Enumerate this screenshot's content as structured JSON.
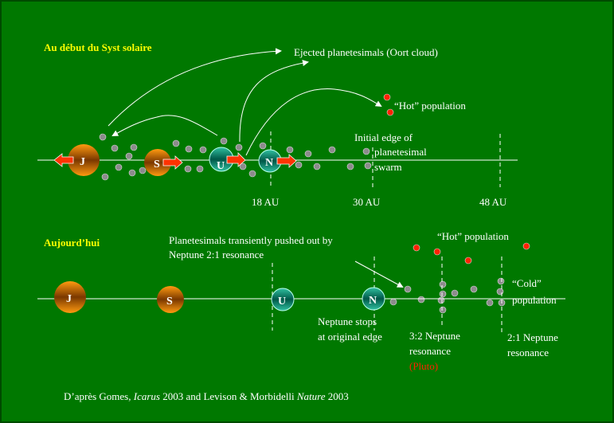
{
  "top": {
    "title": "Au début du Syst solaire",
    "ejected": "Ejected planetesimals (Oort cloud)",
    "hot": "“Hot” population",
    "edge": [
      "Initial edge of",
      "planetesimal",
      "swarm"
    ],
    "au": [
      "18 AU",
      "30 AU",
      "48 AU"
    ]
  },
  "bottom": {
    "title": "Aujourd’hui",
    "pushed": [
      "Planetesimals transiently pushed out by",
      "Neptune 2:1 resonance"
    ],
    "hot": "“Hot” population",
    "cold": [
      "“Cold”",
      "population"
    ],
    "neptune_stops": [
      "Neptune stops",
      "at original edge"
    ],
    "res32": [
      "3:2 Neptune",
      "resonance"
    ],
    "pluto": "(Pluto)",
    "res21": [
      "2:1 Neptune",
      "resonance"
    ]
  },
  "planets": {
    "j": "J",
    "s": "S",
    "u": "U",
    "n": "N"
  },
  "footer": {
    "prefix": "D’après Gomes, ",
    "journal1": "Icarus",
    "mid": " 2003 and Levison & Morbidelli ",
    "journal2": "Nature",
    "suffix": " 2003"
  },
  "colors": {
    "background": "#007800",
    "title": "#ffff00",
    "hot": "#ff2200",
    "planetesimal": "#8c8c8c"
  }
}
